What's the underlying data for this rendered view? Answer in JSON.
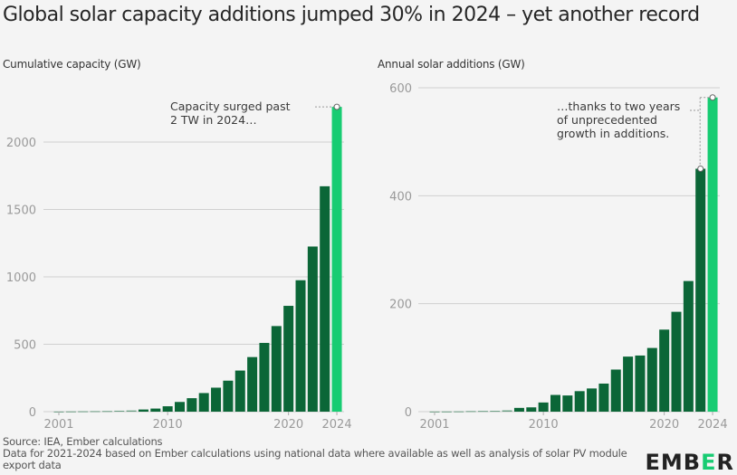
{
  "title": "Global solar capacity additions jumped 30% in 2024 – yet another record",
  "footer": {
    "source": "Source: IEA, Ember calculations",
    "note": "Data for 2021-2024 based on Ember calculations using national data where available as well as analysis of solar PV module export data"
  },
  "logo": {
    "prefix": "EMB",
    "accent": "E",
    "suffix": "R"
  },
  "colors": {
    "historic": "#0b6637",
    "highlight": "#17cc72",
    "grid": "#d0d0d0",
    "background": "#f4f4f4"
  },
  "chart_data": [
    {
      "type": "bar",
      "title": "Cumulative capacity (GW)",
      "xlabel": "",
      "ylabel": "Cumulative capacity (GW)",
      "categories": [
        2001,
        2002,
        2003,
        2004,
        2005,
        2006,
        2007,
        2008,
        2009,
        2010,
        2011,
        2012,
        2013,
        2014,
        2015,
        2016,
        2017,
        2018,
        2019,
        2020,
        2021,
        2022,
        2023,
        2024
      ],
      "values": [
        1,
        2,
        3,
        4,
        5,
        7,
        9,
        16,
        23,
        40,
        72,
        100,
        138,
        178,
        230,
        305,
        405,
        510,
        635,
        785,
        975,
        1225,
        1672,
        2261
      ],
      "highlight_category": 2024,
      "ylim": [
        0,
        2400
      ],
      "yticks": [
        0,
        500,
        1000,
        1500,
        2000
      ],
      "xticks": [
        2001,
        2010,
        2020,
        2024
      ],
      "grid": true,
      "annotation": {
        "lines": [
          "Capacity surged past",
          "2 TW in 2024…"
        ],
        "target": 2024
      }
    },
    {
      "type": "bar",
      "title": "Annual solar additions (GW)",
      "xlabel": "",
      "ylabel": "Annual solar additions (GW)",
      "categories": [
        2001,
        2002,
        2003,
        2004,
        2005,
        2006,
        2007,
        2008,
        2009,
        2010,
        2011,
        2012,
        2013,
        2014,
        2015,
        2016,
        2017,
        2018,
        2019,
        2020,
        2021,
        2022,
        2023,
        2024
      ],
      "values": [
        0.3,
        0.4,
        0.6,
        1.1,
        1.4,
        1.6,
        2.5,
        7,
        8,
        17,
        31,
        30,
        38,
        43,
        52,
        78,
        102,
        104,
        118,
        152,
        185,
        242,
        450,
        582
      ],
      "highlight_category": 2024,
      "ylim": [
        0,
        600
      ],
      "yticks": [
        0,
        200,
        400,
        600
      ],
      "xticks": [
        2001,
        2010,
        2020,
        2024
      ],
      "grid": true,
      "annotation": {
        "lines": [
          "…thanks to two years",
          "of unprecedented",
          "growth in additions."
        ],
        "targets": [
          2023,
          2024
        ]
      }
    }
  ]
}
